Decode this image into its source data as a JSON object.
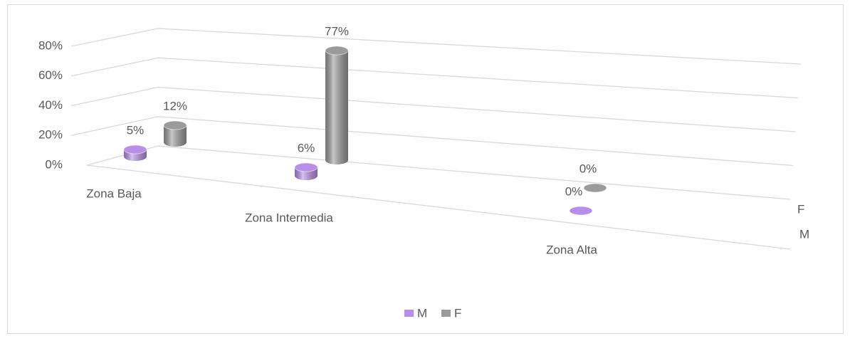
{
  "chart_data": {
    "type": "bar3d",
    "categories": [
      "Zona Baja",
      "Zona Intermedia",
      "Zona Alta"
    ],
    "series": [
      {
        "name": "M",
        "color": "#b88ee8",
        "values": [
          5,
          6,
          0
        ],
        "value_labels": [
          "5%",
          "6%",
          "0%"
        ]
      },
      {
        "name": "F",
        "color": "#9b9b9b",
        "values": [
          12,
          77,
          0
        ],
        "value_labels": [
          "12%",
          "77%",
          "0%"
        ]
      }
    ],
    "ylim": [
      0,
      80
    ],
    "yticks": [
      {
        "value": 0,
        "label": "0%"
      },
      {
        "value": 20,
        "label": "20%"
      },
      {
        "value": 40,
        "label": "40%"
      },
      {
        "value": 60,
        "label": "60%"
      },
      {
        "value": 80,
        "label": "80%"
      }
    ],
    "grid": true,
    "legend": "bottom"
  }
}
